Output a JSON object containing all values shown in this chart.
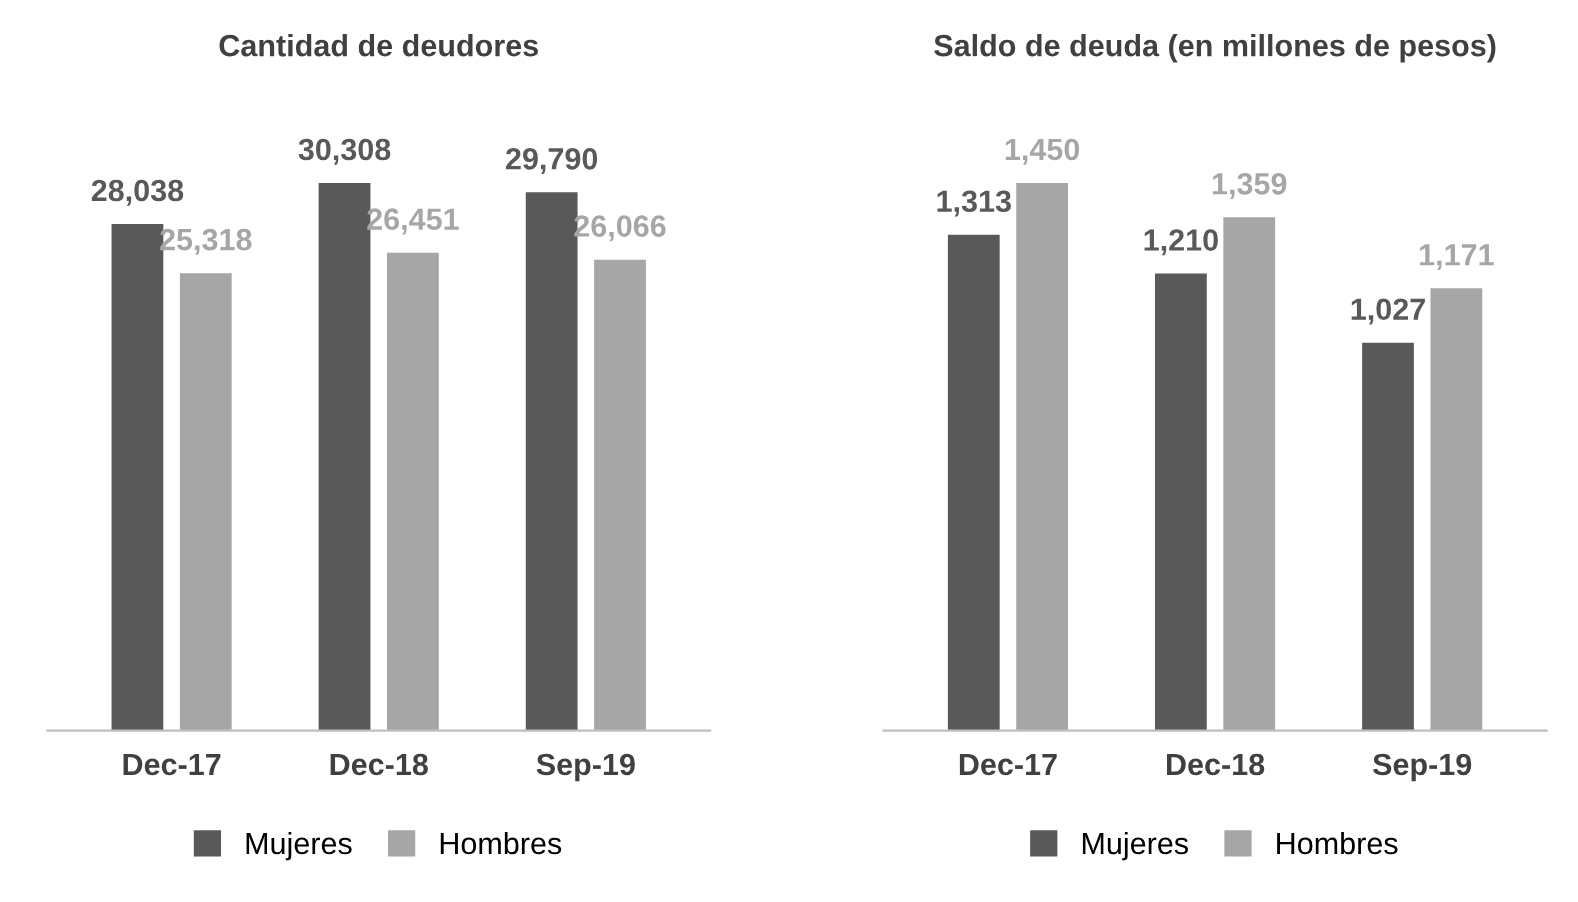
{
  "chart_data": [
    {
      "type": "bar",
      "title": "Cantidad de deudores",
      "categories": [
        "Dec-17",
        "Dec-18",
        "Sep-19"
      ],
      "series": [
        {
          "name": "Mujeres",
          "color": "#595959",
          "values": [
            28038,
            30308,
            29790
          ],
          "value_labels": [
            "28,038",
            "30,308",
            "29,790"
          ]
        },
        {
          "name": "Hombres",
          "color": "#a6a6a6",
          "values": [
            25318,
            26451,
            26066
          ],
          "value_labels": [
            "25,318",
            "26,451",
            "26,066"
          ]
        }
      ],
      "tick_labels": "x",
      "legend": "bottom"
    },
    {
      "type": "bar",
      "title": "Saldo de deuda (en millones de pesos)",
      "categories": [
        "Dec-17",
        "Dec-18",
        "Sep-19"
      ],
      "series": [
        {
          "name": "Mujeres",
          "color": "#595959",
          "values": [
            1313,
            1210,
            1027
          ],
          "value_labels": [
            "1,313",
            "1,210",
            "1,027"
          ]
        },
        {
          "name": "Hombres",
          "color": "#a6a6a6",
          "values": [
            1450,
            1359,
            1171
          ],
          "value_labels": [
            "1,450",
            "1,359",
            "1,171"
          ]
        }
      ],
      "tick_labels": "x",
      "legend": "bottom"
    }
  ]
}
